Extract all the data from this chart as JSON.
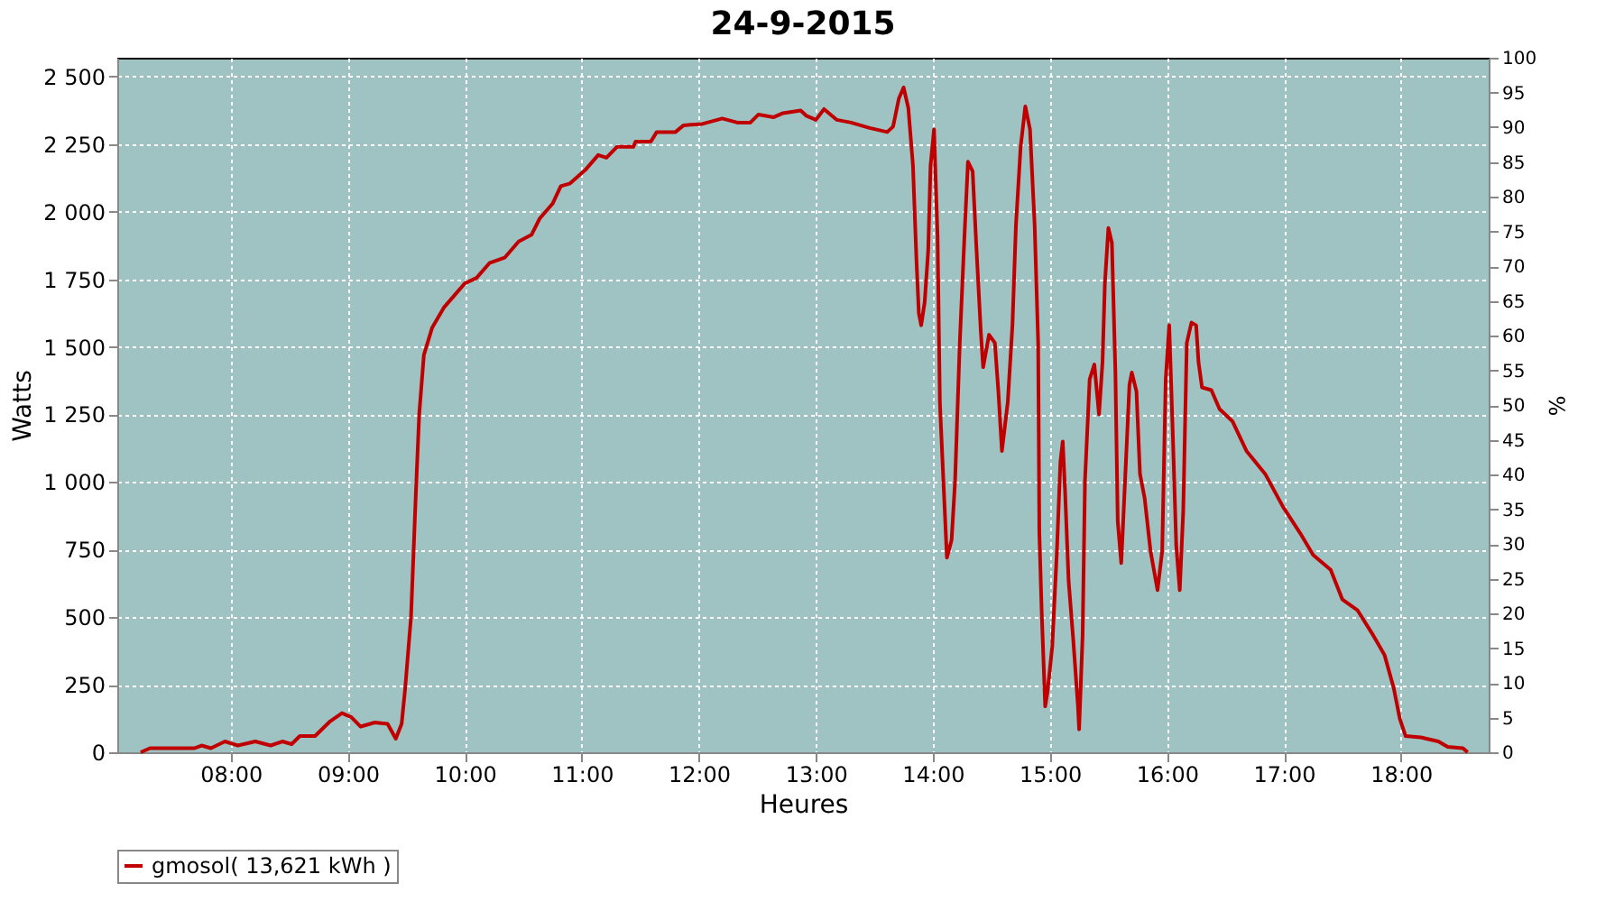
{
  "chart_data": {
    "type": "line",
    "title": "24-9-2015",
    "xlabel": "Heures",
    "ylabel": "Watts",
    "y2label": "%",
    "xlim": [
      7.03,
      18.75
    ],
    "xticks": [
      {
        "value": 8,
        "label": "08:00"
      },
      {
        "value": 9,
        "label": "09:00"
      },
      {
        "value": 10,
        "label": "10:00"
      },
      {
        "value": 11,
        "label": "11:00"
      },
      {
        "value": 12,
        "label": "12:00"
      },
      {
        "value": 13,
        "label": "13:00"
      },
      {
        "value": 14,
        "label": "14:00"
      },
      {
        "value": 15,
        "label": "15:00"
      },
      {
        "value": 16,
        "label": "16:00"
      },
      {
        "value": 17,
        "label": "17:00"
      },
      {
        "value": 18,
        "label": "18:00"
      }
    ],
    "ylim": [
      0,
      2570
    ],
    "yticks": [
      0,
      250,
      500,
      750,
      {
        "value": 1000,
        "label": "1 000"
      },
      {
        "value": 1250,
        "label": "1 250"
      },
      {
        "value": 1500,
        "label": "1 500"
      },
      {
        "value": 1750,
        "label": "1 750"
      },
      {
        "value": 2000,
        "label": "2 000"
      },
      {
        "value": 2250,
        "label": "2 250"
      },
      {
        "value": 2500,
        "label": "2 500"
      }
    ],
    "y2lim": [
      0,
      100
    ],
    "y2ticks": [
      0,
      5,
      10,
      15,
      20,
      25,
      30,
      35,
      40,
      45,
      50,
      55,
      60,
      65,
      70,
      75,
      80,
      85,
      90,
      95,
      100
    ],
    "grid": true,
    "legend": "bottom",
    "marker": "none",
    "line_style": "solid",
    "series": [
      {
        "name": "gmosol( 13,621 kWh )",
        "color": "#c00000",
        "x": [
          7.23,
          7.31,
          7.69,
          7.75,
          7.83,
          7.95,
          8.06,
          8.21,
          8.34,
          8.44,
          8.52,
          8.59,
          8.72,
          8.85,
          8.95,
          9.03,
          9.11,
          9.23,
          9.34,
          9.41,
          9.46,
          9.49,
          9.54,
          9.58,
          9.61,
          9.65,
          9.72,
          9.82,
          10.0,
          10.1,
          10.21,
          10.34,
          10.46,
          10.57,
          10.64,
          10.75,
          10.82,
          10.9,
          11.03,
          11.14,
          11.21,
          11.3,
          11.44,
          11.46,
          11.59,
          11.64,
          11.8,
          11.87,
          12.03,
          12.2,
          12.33,
          12.44,
          12.51,
          12.64,
          12.72,
          12.87,
          12.92,
          13.0,
          13.07,
          13.18,
          13.3,
          13.46,
          13.61,
          13.66,
          13.71,
          13.75,
          13.79,
          13.83,
          13.86,
          13.88,
          13.9,
          13.93,
          13.96,
          13.98,
          14.01,
          14.04,
          14.06,
          14.09,
          14.12,
          14.16,
          14.19,
          14.23,
          14.27,
          14.3,
          14.34,
          14.37,
          14.41,
          14.43,
          14.48,
          14.53,
          14.56,
          14.59,
          14.64,
          14.68,
          14.71,
          14.75,
          14.79,
          14.83,
          14.87,
          14.9,
          14.91,
          14.93,
          14.96,
          14.98,
          15.02,
          15.06,
          15.09,
          15.11,
          15.13,
          15.16,
          15.2,
          15.24,
          15.25,
          15.28,
          15.3,
          15.34,
          15.38,
          15.42,
          15.45,
          15.47,
          15.5,
          15.53,
          15.56,
          15.58,
          15.61,
          15.65,
          15.68,
          15.7,
          15.74,
          15.77,
          15.81,
          15.86,
          15.92,
          15.96,
          15.99,
          16.02,
          16.05,
          16.08,
          16.11,
          16.14,
          16.17,
          16.21,
          16.25,
          16.27,
          16.3,
          16.38,
          16.45,
          16.56,
          16.68,
          16.84,
          16.99,
          17.14,
          17.25,
          17.4,
          17.5,
          17.63,
          17.76,
          17.86,
          17.94,
          17.99,
          18.04,
          18.17,
          18.32,
          18.4,
          18.53,
          18.57
        ],
        "values": [
          0,
          15,
          15,
          25,
          15,
          40,
          25,
          40,
          25,
          40,
          30,
          60,
          60,
          115,
          145,
          130,
          95,
          110,
          105,
          50,
          105,
          235,
          500,
          940,
          1250,
          1470,
          1570,
          1645,
          1735,
          1755,
          1810,
          1830,
          1890,
          1915,
          1975,
          2030,
          2095,
          2105,
          2155,
          2210,
          2200,
          2240,
          2240,
          2260,
          2260,
          2295,
          2295,
          2320,
          2325,
          2345,
          2330,
          2330,
          2360,
          2350,
          2365,
          2375,
          2355,
          2340,
          2380,
          2340,
          2330,
          2310,
          2295,
          2315,
          2420,
          2460,
          2385,
          2170,
          1820,
          1625,
          1580,
          1665,
          1855,
          2170,
          2305,
          1910,
          1295,
          1005,
          720,
          785,
          1005,
          1515,
          1910,
          2185,
          2150,
          1885,
          1555,
          1425,
          1545,
          1515,
          1335,
          1115,
          1295,
          1580,
          1950,
          2240,
          2390,
          2305,
          1950,
          1515,
          810,
          520,
          170,
          225,
          390,
          745,
          1075,
          1150,
          965,
          635,
          415,
          170,
          85,
          435,
          1005,
          1380,
          1435,
          1250,
          1445,
          1735,
          1940,
          1885,
          1405,
          855,
          700,
          1075,
          1360,
          1405,
          1335,
          1030,
          940,
          745,
          600,
          745,
          1380,
          1580,
          1185,
          765,
          600,
          895,
          1515,
          1590,
          1580,
          1445,
          1350,
          1340,
          1270,
          1225,
          1115,
          1030,
          910,
          810,
          730,
          675,
          565,
          525,
          435,
          360,
          235,
          125,
          60,
          55,
          40,
          20,
          15,
          0
        ]
      }
    ]
  }
}
